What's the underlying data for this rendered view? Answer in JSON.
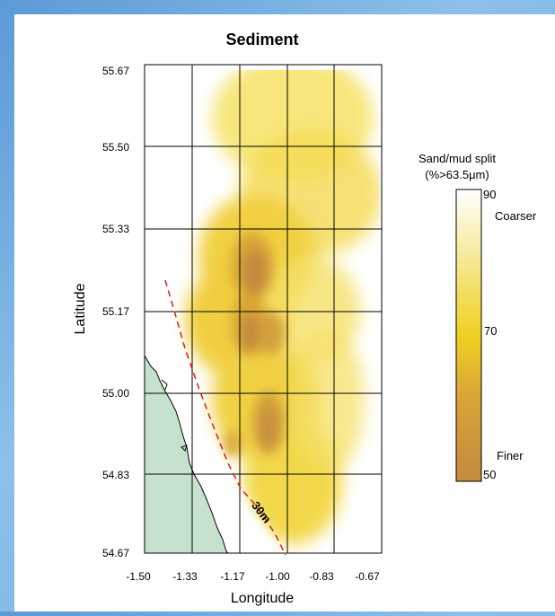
{
  "title": "Sediment",
  "axes": {
    "xlabel": "Longitude",
    "ylabel": "Latitude",
    "x_ticks": [
      "-1.50",
      "-1.33",
      "-1.17",
      "-1.00",
      "-0.83",
      "-0.67"
    ],
    "y_ticks": [
      "55.67",
      "55.50",
      "55.33",
      "55.17",
      "55.00",
      "54.83",
      "54.67"
    ],
    "xlim": [
      -1.5,
      -0.67
    ],
    "ylim": [
      54.67,
      55.67
    ],
    "grid": true
  },
  "contour_label": "30m",
  "legend": {
    "title_line1": "Sand/mud split",
    "title_line2": "(%>63.5μm)",
    "max_label": "90",
    "mid_label": "70",
    "min_label": "50",
    "top_note": "Coarser",
    "bottom_note": "Finer",
    "scale": [
      50,
      90
    ],
    "colors": [
      "#c38a3e",
      "#e3b230",
      "#f2d436",
      "#f8ec8a",
      "#ffffff"
    ]
  },
  "colors": {
    "land": "#c6e2cf",
    "contour": "#d42020",
    "grid": "#000000"
  }
}
